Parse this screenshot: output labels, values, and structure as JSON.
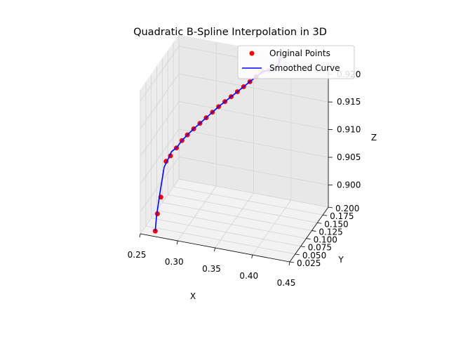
{
  "chart_data": {
    "type": "line",
    "projection": "3d",
    "title": "Quadratic B-Spline Interpolation in 3D",
    "xlabel": "X",
    "ylabel": "Y",
    "zlabel": "Z",
    "xlim": [
      0.25,
      0.45
    ],
    "ylim": [
      0.025,
      0.2
    ],
    "zlim": [
      0.896,
      0.922
    ],
    "x_ticks": [
      "0.25",
      "0.30",
      "0.35",
      "0.40",
      "0.45"
    ],
    "y_ticks": [
      "0.025",
      "0.050",
      "0.075",
      "0.100",
      "0.125",
      "0.150",
      "0.175",
      "0.200"
    ],
    "z_ticks": [
      "0.900",
      "0.905",
      "0.910",
      "0.915",
      "0.920"
    ],
    "grid": true,
    "legend": "top-right",
    "colors": {
      "points": "#ff0000",
      "curve": "#0000ff",
      "pane": "#f2f2f2",
      "grid": "#d4d4d4"
    },
    "series": [
      {
        "name": "Original Points",
        "kind": "scatter",
        "x": [
          0.27,
          0.272,
          0.276,
          0.28,
          0.283,
          0.288,
          0.293,
          0.298,
          0.304,
          0.31,
          0.316,
          0.322,
          0.328,
          0.334,
          0.34,
          0.346,
          0.352,
          0.358,
          0.364,
          0.37,
          0.376,
          0.382,
          0.385
        ],
        "y": [
          0.025,
          0.028,
          0.03,
          0.04,
          0.05,
          0.06,
          0.068,
          0.076,
          0.084,
          0.092,
          0.1,
          0.108,
          0.116,
          0.124,
          0.132,
          0.14,
          0.148,
          0.156,
          0.164,
          0.172,
          0.18,
          0.188,
          0.2
        ],
        "z": [
          0.897,
          0.9,
          0.903,
          0.909,
          0.9095,
          0.9105,
          0.9115,
          0.9122,
          0.913,
          0.9137,
          0.9144,
          0.9151,
          0.9158,
          0.9164,
          0.917,
          0.9176,
          0.9182,
          0.9188,
          0.9194,
          0.92,
          0.92,
          0.92,
          0.9212
        ]
      },
      {
        "name": "Smoothed Curve",
        "kind": "line",
        "x": [
          0.27,
          0.271,
          0.274,
          0.278,
          0.281,
          0.283,
          0.286,
          0.288,
          0.293,
          0.298,
          0.304,
          0.31,
          0.316,
          0.322,
          0.328,
          0.334,
          0.34,
          0.346,
          0.352,
          0.358,
          0.364,
          0.37,
          0.376,
          0.382,
          0.385,
          0.385
        ],
        "y": [
          0.025,
          0.027,
          0.03,
          0.038,
          0.05,
          0.055,
          0.058,
          0.06,
          0.068,
          0.076,
          0.084,
          0.092,
          0.1,
          0.108,
          0.116,
          0.124,
          0.132,
          0.14,
          0.148,
          0.156,
          0.164,
          0.172,
          0.18,
          0.188,
          0.196,
          0.2
        ],
        "z": [
          0.897,
          0.8995,
          0.903,
          0.908,
          0.9092,
          0.91,
          0.9103,
          0.9105,
          0.9115,
          0.9122,
          0.913,
          0.9137,
          0.9144,
          0.9151,
          0.9158,
          0.9164,
          0.917,
          0.9176,
          0.9182,
          0.9188,
          0.9194,
          0.92,
          0.92,
          0.92,
          0.9205,
          0.9212
        ]
      }
    ]
  }
}
